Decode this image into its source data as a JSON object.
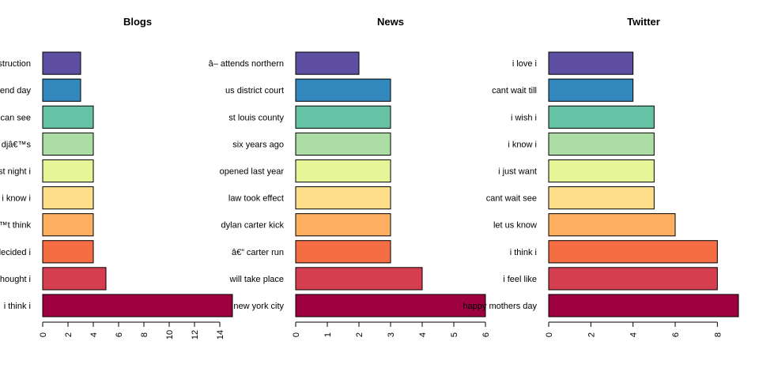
{
  "colors": [
    "#9e0142",
    "#d53e4f",
    "#f46d43",
    "#fdae61",
    "#fee08b",
    "#e6f598",
    "#abdda4",
    "#66c2a5",
    "#3288bd",
    "#5e4fa2"
  ],
  "chart_data": [
    {
      "type": "bar",
      "orientation": "horizontal",
      "title": "Blogs",
      "categories": [
        "i think i",
        "thought i",
        "decided i",
        "™t think",
        "i know i",
        "st night i",
        "djâ€™s",
        "can see",
        "end day",
        "struction"
      ],
      "values": [
        15,
        5,
        4,
        4,
        4,
        4,
        4,
        4,
        3,
        3
      ],
      "xlim": [
        0,
        15
      ],
      "xticks": [
        "0",
        "2",
        "4",
        "6",
        "8",
        "10",
        "12",
        "14"
      ],
      "grid": false
    },
    {
      "type": "bar",
      "orientation": "horizontal",
      "title": "News",
      "categories": [
        "new york city",
        "will take place",
        "â€” carter run",
        "dylan carter kick",
        "law took effect",
        "opened last year",
        "six years ago",
        "st louis county",
        "us district court",
        "â– attends northern"
      ],
      "values": [
        6,
        4,
        3,
        3,
        3,
        3,
        3,
        3,
        3,
        2
      ],
      "xlim": [
        0,
        6
      ],
      "xticks": [
        "0",
        "1",
        "2",
        "3",
        "4",
        "5",
        "6"
      ],
      "grid": false
    },
    {
      "type": "bar",
      "orientation": "horizontal",
      "title": "Twitter",
      "categories": [
        "happy mothers day",
        "i feel like",
        "i think i",
        "let us know",
        "cant wait see",
        "i just want",
        "i know i",
        "i wish i",
        "cant wait till",
        "i love i"
      ],
      "values": [
        9,
        8,
        8,
        6,
        5,
        5,
        5,
        5,
        4,
        4
      ],
      "xlim": [
        0,
        9
      ],
      "xticks": [
        "0",
        "2",
        "4",
        "6",
        "8"
      ],
      "grid": false
    }
  ]
}
